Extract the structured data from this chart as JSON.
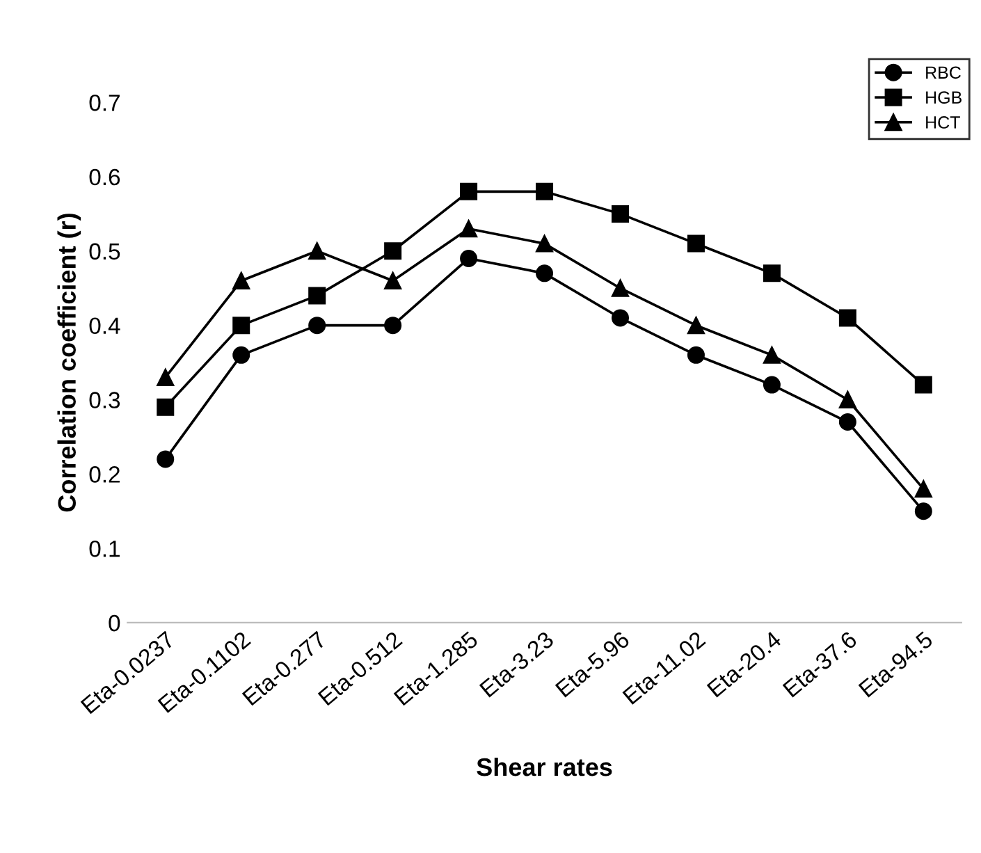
{
  "chart_data": {
    "type": "line",
    "xlabel": "Shear rates",
    "ylabel": "Correlation coefficient (r)",
    "categories": [
      "Eta-0.0237",
      "Eta-0.1102",
      "Eta-0.277",
      "Eta-0.512",
      "Eta-1.285",
      "Eta-3.23",
      "Eta-5.96",
      "Eta-11.02",
      "Eta-20.4",
      "Eta-37.6",
      "Eta-94.5"
    ],
    "series": [
      {
        "name": "RBC",
        "color": "#000000",
        "marker": "circle",
        "values": [
          0.22,
          0.36,
          0.4,
          0.4,
          0.49,
          0.47,
          0.41,
          0.36,
          0.32,
          0.27,
          0.15
        ]
      },
      {
        "name": "HGB",
        "color": "#000000",
        "marker": "square",
        "values": [
          0.29,
          0.4,
          0.44,
          0.5,
          0.58,
          0.58,
          0.55,
          0.51,
          0.47,
          0.41,
          0.32
        ]
      },
      {
        "name": "HCT",
        "color": "#000000",
        "marker": "triangle",
        "values": [
          0.33,
          0.46,
          0.5,
          0.46,
          0.53,
          0.51,
          0.45,
          0.4,
          0.36,
          0.3,
          0.18
        ]
      }
    ],
    "ylim": [
      0,
      0.7
    ],
    "yticks": [
      0,
      0.1,
      0.2,
      0.3,
      0.4,
      0.5,
      0.6,
      0.7
    ],
    "grid": false,
    "legend": "top right",
    "line_style": "solid"
  }
}
